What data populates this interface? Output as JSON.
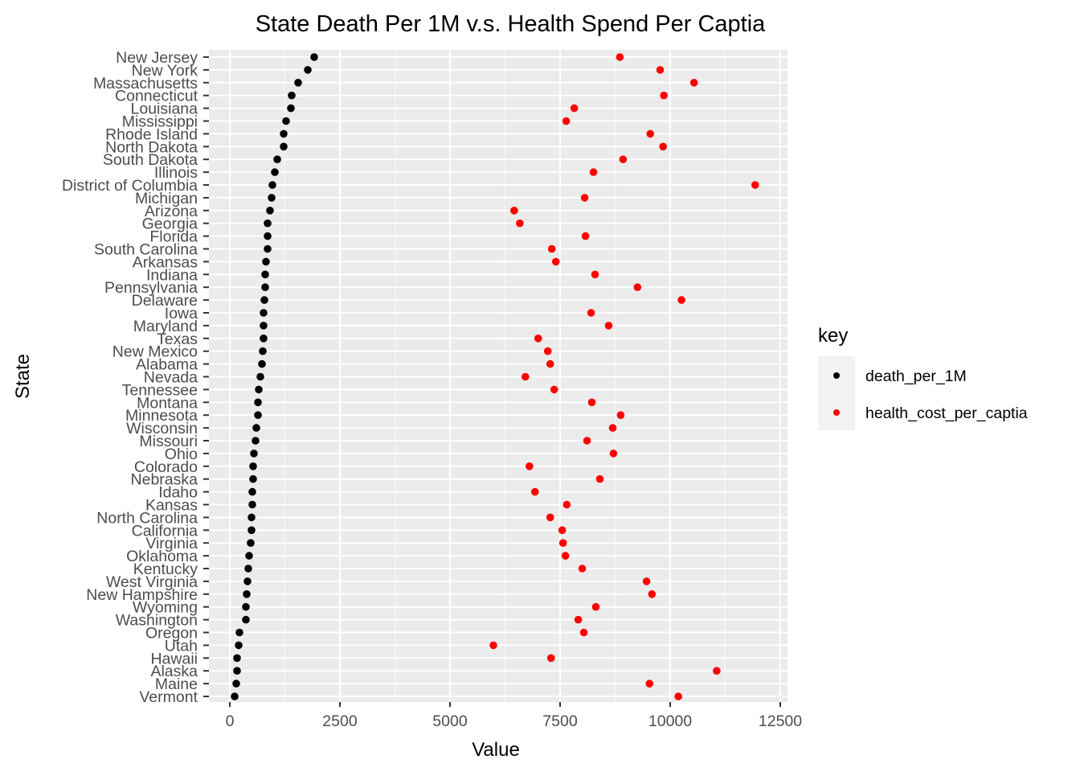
{
  "chart_data": {
    "type": "scatter",
    "title": "State Death Per 1M v.s. Health Spend Per Captia",
    "xlabel": "Value",
    "ylabel": "State",
    "xlim": [
      -500,
      12700
    ],
    "xticks": [
      0,
      2500,
      5000,
      7500,
      10000,
      12500
    ],
    "xtick_labels": [
      "0",
      "2500",
      "5000",
      "7500",
      "10000",
      "12500"
    ],
    "grid": true,
    "legend": {
      "title": "key",
      "position": "right",
      "entries": [
        {
          "name": "death_per_1M",
          "color": "#000000"
        },
        {
          "name": "health_cost_per_captia",
          "color": "#ff0000"
        }
      ]
    },
    "categories": [
      "New Jersey",
      "New York",
      "Massachusetts",
      "Connecticut",
      "Louisiana",
      "Mississippi",
      "Rhode Island",
      "North Dakota",
      "South Dakota",
      "Illinois",
      "District of Columbia",
      "Michigan",
      "Arizona",
      "Georgia",
      "Florida",
      "South Carolina",
      "Arkansas",
      "Indiana",
      "Pennsylvania",
      "Delaware",
      "Iowa",
      "Maryland",
      "Texas",
      "New Mexico",
      "Alabama",
      "Nevada",
      "Tennessee",
      "Montana",
      "Minnesota",
      "Wisconsin",
      "Missouri",
      "Ohio",
      "Colorado",
      "Nebraska",
      "Idaho",
      "Kansas",
      "North Carolina",
      "California",
      "Virginia",
      "Oklahoma",
      "Kentucky",
      "West Virginia",
      "New Hampshire",
      "Wyoming",
      "Washington",
      "Oregon",
      "Utah",
      "Hawaii",
      "Alaska",
      "Maine",
      "Vermont"
    ],
    "series": [
      {
        "name": "death_per_1M",
        "color": "#000000",
        "values": [
          1916,
          1770,
          1551,
          1405,
          1387,
          1277,
          1223,
          1223,
          1077,
          1022,
          967,
          949,
          912,
          858,
          858,
          858,
          821,
          803,
          803,
          785,
          766,
          766,
          766,
          748,
          730,
          694,
          657,
          639,
          639,
          602,
          584,
          547,
          529,
          529,
          511,
          511,
          493,
          493,
          474,
          438,
          420,
          401,
          383,
          365,
          365,
          219,
          201,
          164,
          164,
          146,
          110
        ]
      },
      {
        "name": "health_cost_per_captia",
        "color": "#ff0000",
        "values": [
          8857,
          9773,
          10542,
          9857,
          7821,
          7639,
          9548,
          9839,
          8930,
          8258,
          11930,
          8058,
          6458,
          6585,
          8076,
          7312,
          7403,
          8294,
          9257,
          10257,
          8203,
          8603,
          7003,
          7221,
          7276,
          6712,
          7367,
          8221,
          8876,
          8694,
          8112,
          8712,
          6803,
          8403,
          6930,
          7652,
          7276,
          7548,
          7567,
          7621,
          8003,
          9463,
          9585,
          8312,
          7912,
          8039,
          5985,
          7294,
          11057,
          9530,
          10185
        ]
      }
    ]
  }
}
